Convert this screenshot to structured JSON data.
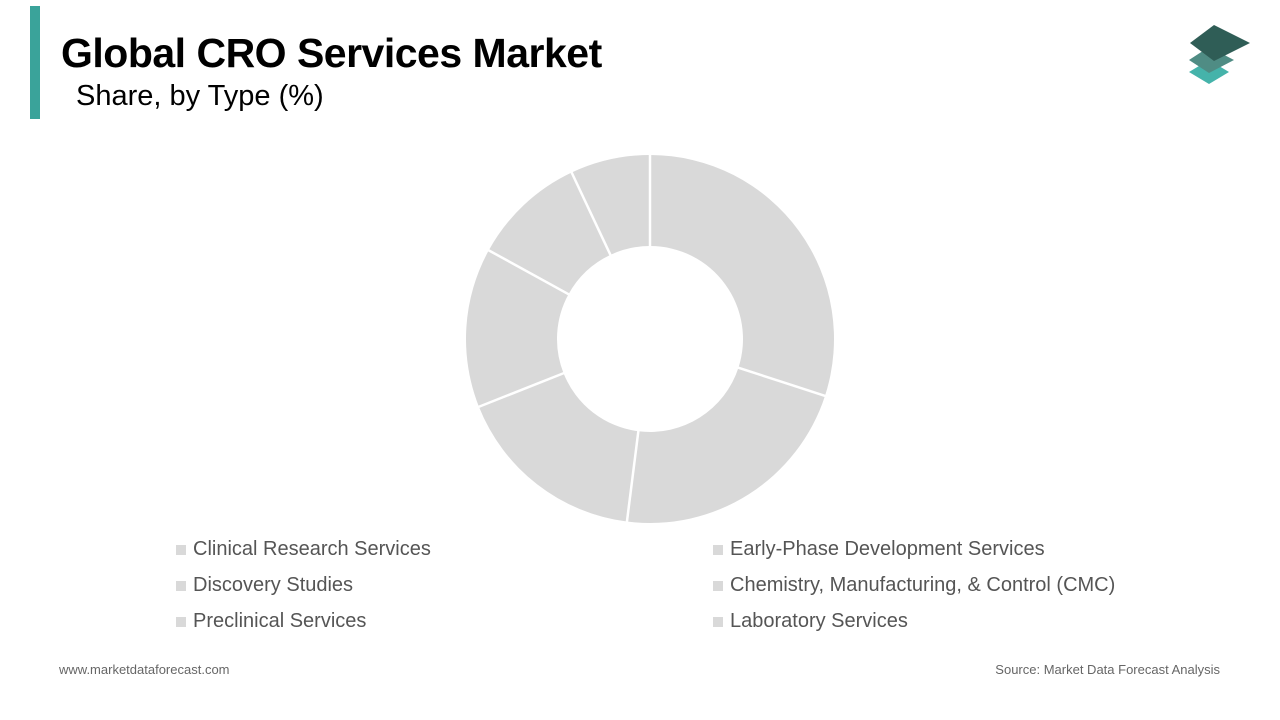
{
  "header": {
    "title": "Global CRO Services Market",
    "subtitle": "Share, by Type (%)",
    "accent_color": "#3aa39a"
  },
  "logo": {
    "icon": "layered-stack-logo-icon",
    "colors": [
      "#2f5d56",
      "#4f8c84",
      "#45b3aa"
    ]
  },
  "chart_data": {
    "type": "pie",
    "donut": true,
    "slice_color": "#d9d9d9",
    "separator_color": "#ffffff",
    "series": [
      {
        "name": "Clinical Research Services",
        "value": 30
      },
      {
        "name": "Early-Phase Development Services",
        "value": 22
      },
      {
        "name": "Discovery Studies",
        "value": 17
      },
      {
        "name": "Chemistry, Manufacturing, & Control (CMC)",
        "value": 14
      },
      {
        "name": "Preclinical Services",
        "value": 10
      },
      {
        "name": "Laboratory Services",
        "value": 7
      }
    ],
    "legend_position": "bottom",
    "legend_swatch_color": "#d9d9d9"
  },
  "footer": {
    "website": "www.marketdataforecast.com",
    "source": "Source: Market Data Forecast Analysis"
  }
}
